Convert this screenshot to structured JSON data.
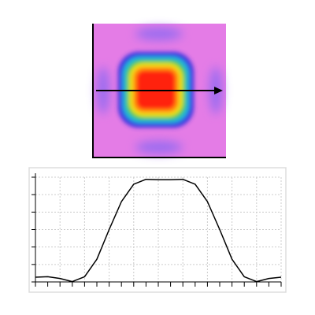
{
  "chart_data": {
    "type": "line",
    "x": [
      0,
      1,
      2,
      3,
      4,
      5,
      6,
      7,
      8,
      9,
      10,
      11,
      12,
      13,
      14,
      15,
      16,
      17,
      18,
      19,
      20
    ],
    "series": [
      {
        "color": "#000000",
        "values": [
          0.27,
          0.3,
          0.2,
          0.02,
          0.3,
          1.3,
          3.0,
          4.6,
          5.6,
          5.88,
          5.85,
          5.85,
          5.88,
          5.6,
          4.6,
          3.0,
          1.3,
          0.3,
          0.02,
          0.2,
          0.27
        ]
      }
    ],
    "xlim": [
      0,
      20
    ],
    "ylim": [
      0,
      6
    ],
    "xticks": [
      0,
      1,
      2,
      3,
      4,
      5,
      6,
      7,
      8,
      9,
      10,
      11,
      12,
      13,
      14,
      15,
      16,
      17,
      18,
      19,
      20
    ],
    "yticks": [
      0,
      1,
      2,
      3,
      4,
      5,
      6
    ],
    "grid": true
  }
}
